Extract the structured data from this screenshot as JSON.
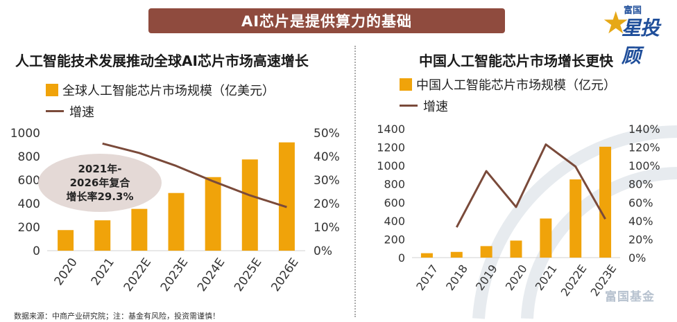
{
  "banner": {
    "title": "AI芯片是提供算力的基础"
  },
  "logo": {
    "small": "富国",
    "big": "星投顾"
  },
  "footnote": "数据来源：中商产业研究院；注：基金有风险，投资需谨慎！",
  "watermark": "富国基金",
  "colors": {
    "bar": "#f0a30a",
    "line": "#7a4a3a",
    "banner": "#8f4b3e"
  },
  "chart_data": [
    {
      "type": "bar",
      "title": "人工智能技术发展推动全球AI芯片市场高速增长",
      "categories": [
        "2020",
        "2021",
        "2022E",
        "2023E",
        "2024E",
        "2025E",
        "2026E"
      ],
      "series": [
        {
          "name": "全球人工智能芯片市场规模（亿美元）",
          "kind": "bar",
          "axis": "left",
          "values": [
            175,
            258,
            355,
            490,
            625,
            775,
            920
          ]
        },
        {
          "name": "增速",
          "kind": "line",
          "axis": "right",
          "values": [
            null,
            0.455,
            0.415,
            0.36,
            0.295,
            0.235,
            0.185
          ]
        }
      ],
      "y_left": {
        "min": 0,
        "max": 1000,
        "ticks": [
          "0",
          "200",
          "400",
          "600",
          "800",
          "1000"
        ]
      },
      "y_right": {
        "min": 0,
        "max": 0.5,
        "ticks": [
          "0%",
          "10%",
          "20%",
          "30%",
          "40%",
          "50%"
        ]
      },
      "annotation": [
        "2021年-",
        "2026年复合",
        "增长率29.3%"
      ]
    },
    {
      "type": "bar",
      "title": "中国人工智能芯片市场增长更快",
      "categories": [
        "2017",
        "2018",
        "2019",
        "2020",
        "2021",
        "2022E",
        "2023E"
      ],
      "series": [
        {
          "name": "中国人工智能芯片市场规模（亿元）",
          "kind": "bar",
          "axis": "left",
          "values": [
            48,
            62,
            125,
            185,
            425,
            850,
            1205
          ]
        },
        {
          "name": "增速",
          "kind": "line",
          "axis": "right",
          "values": [
            null,
            0.33,
            0.94,
            0.55,
            1.23,
            0.99,
            0.42
          ]
        }
      ],
      "y_left": {
        "min": 0,
        "max": 1400,
        "ticks": [
          "0",
          "200",
          "400",
          "600",
          "800",
          "1000",
          "1200",
          "1400"
        ]
      },
      "y_right": {
        "min": 0,
        "max": 1.4,
        "ticks": [
          "0%",
          "20%",
          "40%",
          "60%",
          "80%",
          "100%",
          "120%",
          "140%"
        ]
      }
    }
  ]
}
